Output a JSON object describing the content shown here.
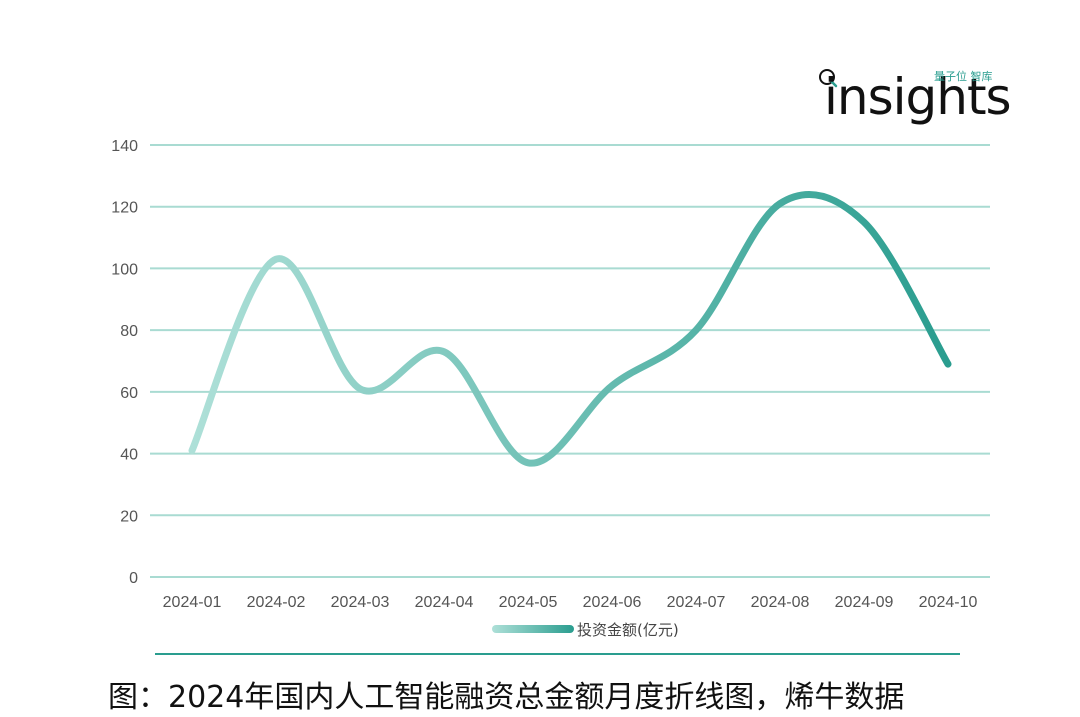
{
  "logo": {
    "word": "insights",
    "sub": "量子位 智库"
  },
  "caption": "图：2024年国内人工智能融资总金额月度折线图，烯牛数据",
  "chart_data": {
    "type": "line",
    "title": "",
    "xlabel": "",
    "ylabel": "",
    "categories": [
      "2024-01",
      "2024-02",
      "2024-03",
      "2024-04",
      "2024-05",
      "2024-06",
      "2024-07",
      "2024-08",
      "2024-09",
      "2024-10"
    ],
    "series": [
      {
        "name": "投资金额(亿元)",
        "values": [
          41,
          103,
          61,
          73,
          37,
          62,
          80,
          121,
          115,
          69
        ]
      }
    ],
    "ylim": [
      0,
      140
    ],
    "yticks": [
      0,
      20,
      40,
      60,
      80,
      100,
      120,
      140
    ],
    "grid": true,
    "legend": "bottom",
    "colors": {
      "start": "#aee0d8",
      "end": "#2a9d8f",
      "grid": "#a9dbd2"
    }
  }
}
